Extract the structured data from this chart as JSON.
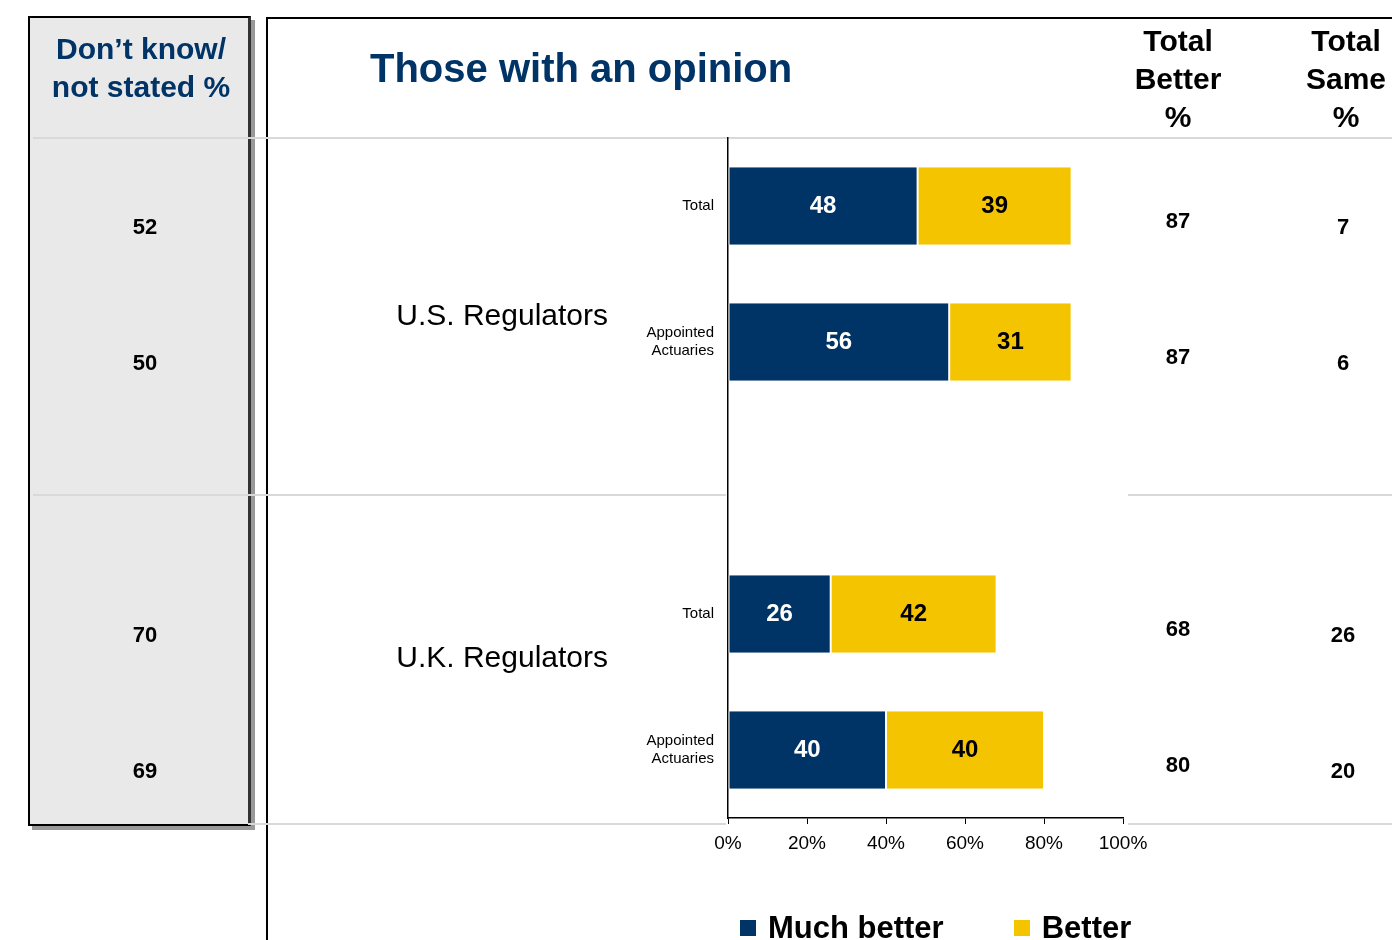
{
  "chart_data": {
    "type": "bar",
    "orientation": "horizontal",
    "stacked": true,
    "title": "Those with an opinion",
    "categories": [
      "Total",
      "Appointed Actuaries",
      null,
      "Total",
      "Appointed Actuaries"
    ],
    "series": [
      {
        "name": "Much better",
        "color": "#003366",
        "values": [
          48,
          56,
          null,
          26,
          40
        ]
      },
      {
        "name": "Better",
        "color": "#f5c400",
        "values": [
          39,
          31,
          null,
          42,
          40
        ]
      }
    ],
    "xlim": [
      0,
      100
    ],
    "xticks": [
      {
        "value": 0,
        "label": "0%"
      },
      {
        "value": 20,
        "label": "20%"
      },
      {
        "value": 40,
        "label": "40%"
      },
      {
        "value": 60,
        "label": "60%"
      },
      {
        "value": 80,
        "label": "80%"
      },
      {
        "value": 100,
        "label": "100%"
      }
    ],
    "grid": false,
    "legend": "bottom",
    "data_labels": true,
    "annotations": [
      "Don’t know/ not stated %",
      "Total Better %",
      "Total Same %",
      "U.S. Regulators",
      "U.K. Regulators",
      "52",
      "50",
      "70",
      "69",
      "87",
      "87",
      "68",
      "80",
      "7",
      "6",
      "26",
      "20"
    ]
  }
}
